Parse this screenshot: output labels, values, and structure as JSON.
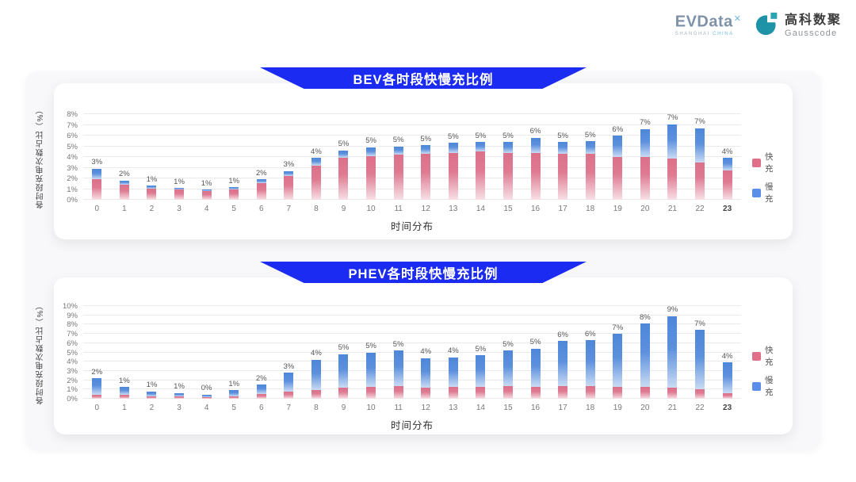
{
  "header": {
    "evdata": {
      "wordmark": "EVData",
      "sup_mark": "✕",
      "subtext_left": "SHANGHAI",
      "subtext_right": "CHINA"
    },
    "gausscode": {
      "name_cn": "高科数聚",
      "name_en": "Gausscode"
    }
  },
  "colors": {
    "banner_blue": "#1B2BF2",
    "fast_pink": "#E0708A",
    "slow_blue": "#5B8EE8"
  },
  "chart_data": [
    {
      "type": "bar",
      "stacked": true,
      "title": "BEV各时段快慢充比例",
      "xlabel": "时间分布",
      "ylabel": "各时段充电次数占比（%）",
      "grid": true,
      "legend_position": "right",
      "ymax": 8,
      "ytick_step": 1,
      "ytick_suffix": "%",
      "categories": [
        "0",
        "1",
        "2",
        "3",
        "4",
        "5",
        "6",
        "7",
        "8",
        "9",
        "10",
        "11",
        "12",
        "13",
        "14",
        "15",
        "16",
        "17",
        "18",
        "19",
        "20",
        "21",
        "22",
        "23"
      ],
      "series": [
        {
          "name": "快充",
          "color": "#E0708A",
          "values": [
            1.9,
            1.4,
            1.05,
            0.95,
            0.85,
            1.0,
            1.55,
            2.2,
            3.2,
            3.9,
            4.1,
            4.2,
            4.3,
            4.4,
            4.5,
            4.4,
            4.4,
            4.3,
            4.3,
            4.0,
            4.0,
            3.9,
            3.5,
            2.75
          ]
        },
        {
          "name": "慢充",
          "color": "#5B8EE8",
          "values": [
            1.0,
            0.4,
            0.25,
            0.15,
            0.1,
            0.15,
            0.35,
            0.5,
            0.7,
            0.7,
            0.8,
            0.8,
            0.8,
            0.9,
            0.9,
            1.0,
            1.4,
            1.1,
            1.15,
            2.0,
            2.6,
            3.2,
            3.2,
            1.15
          ]
        }
      ],
      "total_labels": [
        "3%",
        "2%",
        "1%",
        "1%",
        "1%",
        "1%",
        "2%",
        "3%",
        "4%",
        "5%",
        "5%",
        "5%",
        "5%",
        "5%",
        "5%",
        "5%",
        "6%",
        "5%",
        "5%",
        "6%",
        "7%",
        "7%",
        "7%",
        "4%"
      ]
    },
    {
      "type": "bar",
      "stacked": true,
      "title": "PHEV各时段快慢充比例",
      "xlabel": "时间分布",
      "ylabel": "各时段充电次数占比（%）",
      "grid": true,
      "legend_position": "right",
      "ymax": 10,
      "ytick_step": 1,
      "ytick_suffix": "%",
      "categories": [
        "0",
        "1",
        "2",
        "3",
        "4",
        "5",
        "6",
        "7",
        "8",
        "9",
        "10",
        "11",
        "12",
        "13",
        "14",
        "15",
        "16",
        "17",
        "18",
        "19",
        "20",
        "21",
        "22",
        "23"
      ],
      "series": [
        {
          "name": "快充",
          "color": "#E0708A",
          "values": [
            0.45,
            0.4,
            0.3,
            0.25,
            0.2,
            0.3,
            0.55,
            0.75,
            0.9,
            1.2,
            1.3,
            1.35,
            1.2,
            1.25,
            1.3,
            1.4,
            1.3,
            1.4,
            1.4,
            1.3,
            1.3,
            1.2,
            1.0,
            0.6
          ]
        },
        {
          "name": "慢充",
          "color": "#5B8EE8",
          "values": [
            1.75,
            0.85,
            0.5,
            0.35,
            0.25,
            0.6,
            0.95,
            2.05,
            3.3,
            3.6,
            3.7,
            3.85,
            3.2,
            3.2,
            3.4,
            3.8,
            4.1,
            4.8,
            4.9,
            5.7,
            6.8,
            7.8,
            6.4,
            3.3
          ]
        }
      ],
      "total_labels": [
        "2%",
        "1%",
        "1%",
        "1%",
        "0%",
        "1%",
        "2%",
        "3%",
        "4%",
        "5%",
        "5%",
        "5%",
        "4%",
        "4%",
        "5%",
        "5%",
        "5%",
        "6%",
        "6%",
        "7%",
        "8%",
        "9%",
        "7%",
        "4%"
      ]
    }
  ]
}
